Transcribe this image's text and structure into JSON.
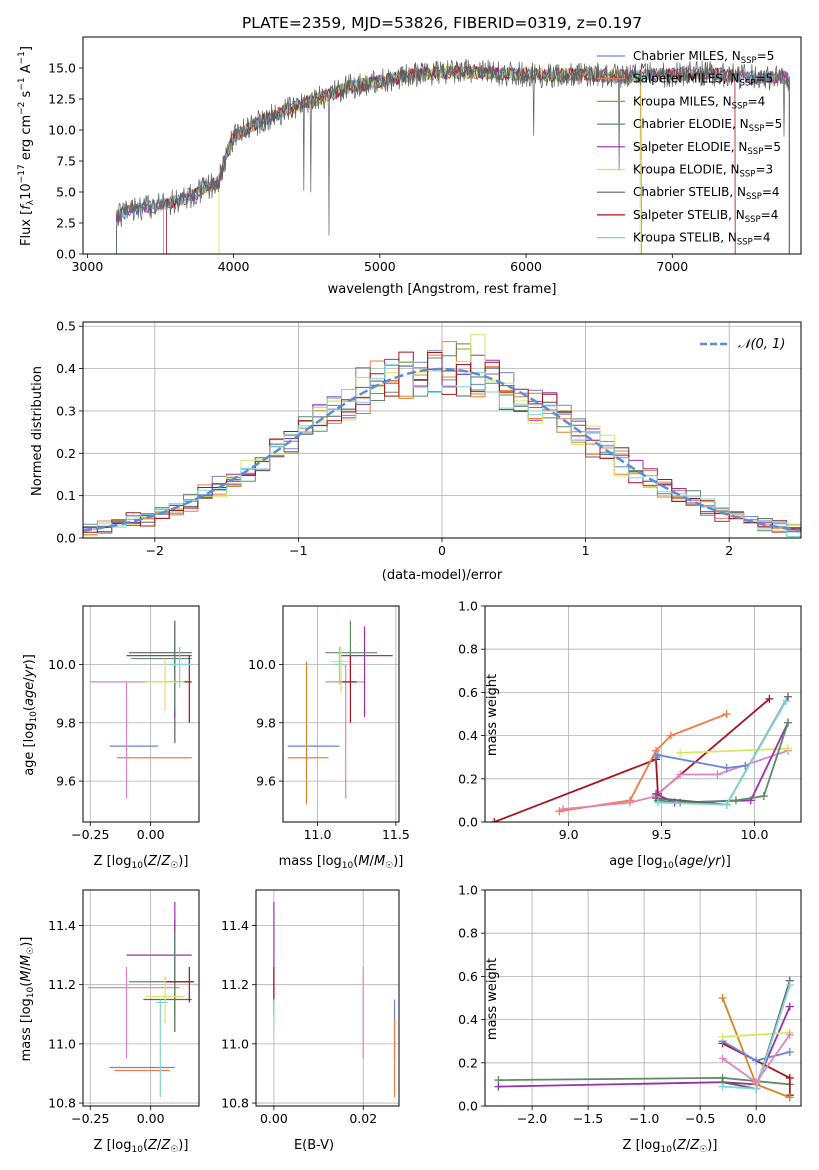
{
  "figure": {
    "title": "PLATE=2359, MJD=53826, FIBERID=0319, z=0.197"
  },
  "models": [
    {
      "name": "Chabrier MILES",
      "nssp": "5",
      "color": "#6a84d8"
    },
    {
      "name": "Salpeter MILES",
      "nssp": "5",
      "color": "#ef7b45"
    },
    {
      "name": "Kroupa MILES",
      "nssp": "4",
      "color": "#d4852a"
    },
    {
      "name": "Chabrier ELODIE",
      "nssp": "5",
      "color": "#5c8b64"
    },
    {
      "name": "Salpeter ELODIE",
      "nssp": "5",
      "color": "#9b2fb0"
    },
    {
      "name": "Kroupa ELODIE",
      "nssp": "3",
      "color": "#d8e660"
    },
    {
      "name": "Chabrier STELIB",
      "nssp": "4",
      "color": "#606060"
    },
    {
      "name": "Salpeter STELIB",
      "nssp": "4",
      "color": "#a8141e"
    },
    {
      "name": "Kroupa STELIB",
      "nssp": "4",
      "color": "#7fd6d6"
    }
  ],
  "extra_colors": {
    "pink": "#e084c0",
    "gaussian": "#5b8dd6"
  },
  "chart_data": [
    {
      "type": "line",
      "id": "spectrum",
      "xlabel": "wavelength [Angstrom, rest frame]",
      "ylabel": "Flux [fλ10⁻¹⁷ erg cm⁻² s⁻¹ Å⁻¹]",
      "xlim": [
        2970,
        7880
      ],
      "ylim": [
        0,
        17.5
      ],
      "xticks": [
        3000,
        4000,
        5000,
        6000,
        7000
      ],
      "yticks": [
        0.0,
        2.5,
        5.0,
        7.5,
        10.0,
        12.5,
        15.0
      ],
      "legend": "top-right",
      "continuum_x": [
        3200,
        3300,
        3500,
        3700,
        3900,
        3950,
        4000,
        4200,
        4400,
        4600,
        4800,
        5000,
        5200,
        5400,
        5600,
        5800,
        6000,
        6200,
        6400,
        6600,
        6800,
        7000,
        7200,
        7400,
        7500,
        7800
      ],
      "continuum_y": [
        3.0,
        3.6,
        3.9,
        4.6,
        5.8,
        8.0,
        9.5,
        10.8,
        11.8,
        12.6,
        13.5,
        13.9,
        14.4,
        14.6,
        14.7,
        14.6,
        14.5,
        14.4,
        14.5,
        14.3,
        14.4,
        14.5,
        14.6,
        14.4,
        14.3,
        14.2
      ]
    },
    {
      "type": "histogram",
      "id": "residuals",
      "xlabel": "(data-model)/error",
      "ylabel": "Normed distribution",
      "xlim": [
        -2.5,
        2.5
      ],
      "ylim": [
        0,
        0.51
      ],
      "xticks": [
        -2,
        -1,
        0,
        1,
        2
      ],
      "yticks": [
        0.0,
        0.1,
        0.2,
        0.3,
        0.4,
        0.5
      ],
      "grid": true,
      "legend": "top-right",
      "gaussian_label": "𝒩(0, 1)",
      "bin_width": 0.1
    },
    {
      "type": "scatter",
      "id": "age_vs_Z",
      "xlabel": "Z [log₁₀(Z/Z☉)]",
      "ylabel": "age  [log₁₀(age/yr)]",
      "xlim": [
        -0.28,
        0.2
      ],
      "ylim": [
        9.46,
        10.2
      ],
      "xticks": [
        -0.25,
        0.0
      ],
      "yticks": [
        9.6,
        9.8,
        10.0
      ],
      "grid": true
    },
    {
      "type": "scatter",
      "id": "age_vs_mass",
      "xlabel": "mass [log₁₀(M/M☉)]",
      "xlim": [
        10.78,
        11.52
      ],
      "ylim": [
        9.46,
        10.2
      ],
      "xticks": [
        11.0,
        11.5
      ],
      "yticks": [
        9.6,
        9.8,
        10.0
      ],
      "grid": true
    },
    {
      "type": "line",
      "id": "massweight_vs_age",
      "xlabel": "age  [log₁₀(age/yr)]",
      "ylabel": "mass weight",
      "xlim": [
        8.55,
        10.25
      ],
      "ylim": [
        0,
        1.0
      ],
      "xticks": [
        9.0,
        9.5,
        10.0
      ],
      "yticks": [
        0.0,
        0.2,
        0.4,
        0.6,
        0.8,
        1.0
      ],
      "grid": true
    },
    {
      "type": "scatter",
      "id": "mass_vs_Z",
      "xlabel": "Z [log₁₀(Z/Z☉)]",
      "ylabel": "mass [log₁₀(M/M☉)]",
      "xlim": [
        -0.28,
        0.2
      ],
      "ylim": [
        10.79,
        11.52
      ],
      "xticks": [
        -0.25,
        0.0
      ],
      "yticks": [
        10.8,
        11.0,
        11.2,
        11.4
      ],
      "grid": true
    },
    {
      "type": "scatter",
      "id": "mass_vs_ebv",
      "xlabel": "E(B-V)",
      "xlim": [
        -0.004,
        0.028
      ],
      "ylim": [
        10.79,
        11.52
      ],
      "xticks": [
        0.0,
        0.02
      ],
      "yticks": [
        10.8,
        11.0,
        11.2,
        11.4
      ],
      "grid": true
    },
    {
      "type": "line",
      "id": "massweight_vs_Z",
      "xlabel": "Z [log₁₀(Z/Z☉)]",
      "ylabel": "mass weight",
      "xlim": [
        -2.42,
        0.4
      ],
      "ylim": [
        0,
        1.0
      ],
      "xticks": [
        -2.0,
        -1.5,
        -1.0,
        -0.5,
        0.0
      ],
      "yticks": [
        0.0,
        0.2,
        0.4,
        0.6,
        0.8,
        1.0
      ],
      "grid": true
    }
  ],
  "points": {
    "age_Z": [
      {
        "c": "#6a84d8",
        "x": -0.1,
        "y": 9.72,
        "xe": [
          -0.17,
          0.03
        ],
        "ye": [
          9.72,
          9.72
        ]
      },
      {
        "c": "#ef7b45",
        "x": -0.1,
        "y": 9.68,
        "xe": [
          -0.14,
          0.17
        ],
        "ye": [
          9.68,
          9.68
        ]
      },
      {
        "c": "#e084c0",
        "x": -0.1,
        "y": 9.94,
        "xe": [
          -0.25,
          0.15
        ],
        "ye": [
          9.54,
          9.94
        ]
      },
      {
        "c": "#606060",
        "x": 0.1,
        "y": 10.04,
        "xe": [
          -0.09,
          0.17
        ],
        "ye": [
          9.73,
          10.15
        ]
      },
      {
        "c": "#9b2fb0",
        "x": 0.1,
        "y": 10.03,
        "xe": [
          -0.1,
          0.17
        ],
        "ye": [
          9.82,
          10.13
        ]
      },
      {
        "c": "#5c8b64",
        "x": 0.1,
        "y": 10.02,
        "xe": [
          -0.08,
          0.17
        ],
        "ye": [
          9.84,
          10.13
        ]
      },
      {
        "c": "#a8141e",
        "x": 0.16,
        "y": 9.94,
        "xe": [
          0.07,
          0.17
        ],
        "ye": [
          9.8,
          10.03
        ]
      },
      {
        "c": "#d8e660",
        "x": 0.06,
        "y": 9.94,
        "xe": [
          -0.02,
          0.14
        ],
        "ye": [
          9.84,
          10.02
        ]
      },
      {
        "c": "#7fd6d6",
        "x": 0.12,
        "y": 10.0,
        "xe": [
          0.07,
          0.17
        ],
        "ye": [
          9.92,
          10.06
        ]
      }
    ],
    "age_mass": [
      {
        "c": "#6a84d8",
        "x": 10.88,
        "y": 9.72,
        "xe": [
          10.81,
          11.14
        ],
        "ye": [
          9.72,
          9.72
        ]
      },
      {
        "c": "#ef7b45",
        "x": 10.88,
        "y": 9.68,
        "xe": [
          10.81,
          11.07
        ],
        "ye": [
          9.68,
          9.68
        ]
      },
      {
        "c": "#e084c0",
        "x": 11.18,
        "y": 9.94,
        "xe": [
          11.05,
          11.3
        ],
        "ye": [
          9.54,
          10.0
        ]
      },
      {
        "c": "#d4852a",
        "x": 10.93,
        "y": 9.76,
        "xe": [
          10.93,
          10.93
        ],
        "ye": [
          9.52,
          10.01
        ]
      },
      {
        "c": "#9b2fb0",
        "x": 11.3,
        "y": 10.03,
        "xe": [
          11.15,
          11.48
        ],
        "ye": [
          9.82,
          10.13
        ]
      },
      {
        "c": "#5c8b64",
        "x": 11.21,
        "y": 10.04,
        "xe": [
          11.05,
          11.38
        ],
        "ye": [
          9.92,
          10.15
        ]
      },
      {
        "c": "#a8141e",
        "x": 11.21,
        "y": 9.94,
        "xe": [
          11.14,
          11.25
        ],
        "ye": [
          9.8,
          10.03
        ]
      },
      {
        "c": "#d8e660",
        "x": 11.15,
        "y": 10.01,
        "xe": [
          11.08,
          11.2
        ],
        "ye": [
          9.9,
          10.06
        ]
      },
      {
        "c": "#7fd6d6",
        "x": 11.14,
        "y": 10.0,
        "xe": [
          11.1,
          11.18
        ],
        "ye": [
          9.93,
          10.06
        ]
      }
    ],
    "mass_Z": [
      {
        "c": "#6a84d8",
        "x": -0.05,
        "y": 10.92,
        "xe": [
          -0.17,
          0.1
        ],
        "ye": [
          10.92,
          10.92
        ]
      },
      {
        "c": "#ef7b45",
        "x": -0.05,
        "y": 10.91,
        "xe": [
          -0.15,
          0.08
        ],
        "ye": [
          10.91,
          10.91
        ]
      },
      {
        "c": "#e084c0",
        "x": -0.1,
        "y": 11.19,
        "xe": [
          -0.26,
          0.12
        ],
        "ye": [
          10.95,
          11.26
        ]
      },
      {
        "c": "#606060",
        "x": 0.1,
        "y": 11.15,
        "xe": [
          -0.03,
          0.17
        ],
        "ye": [
          11.04,
          11.42
        ]
      },
      {
        "c": "#9b2fb0",
        "x": 0.1,
        "y": 11.3,
        "xe": [
          -0.1,
          0.17
        ],
        "ye": [
          11.1,
          11.48
        ]
      },
      {
        "c": "#5c8b64",
        "x": 0.1,
        "y": 11.21,
        "xe": [
          -0.09,
          0.17
        ],
        "ye": [
          11.04,
          11.38
        ]
      },
      {
        "c": "#a8141e",
        "x": 0.16,
        "y": 11.21,
        "xe": [
          0.06,
          0.18
        ],
        "ye": [
          11.14,
          11.26
        ]
      },
      {
        "c": "#d8e660",
        "x": 0.06,
        "y": 11.16,
        "xe": [
          -0.02,
          0.14
        ],
        "ye": [
          11.07,
          11.23
        ]
      },
      {
        "c": "#7fd6d6",
        "x": 0.04,
        "y": 11.14,
        "xe": [
          0.02,
          0.07
        ],
        "ye": [
          10.82,
          11.15
        ]
      }
    ],
    "mass_ebv": [
      {
        "c": "#9b2fb0",
        "x": 0.0,
        "y": 11.3,
        "xe": [
          0,
          0
        ],
        "ye": [
          11.1,
          11.48
        ]
      },
      {
        "c": "#a8141e",
        "x": 0.0,
        "y": 11.2,
        "xe": [
          0,
          0
        ],
        "ye": [
          11.14,
          11.26
        ]
      },
      {
        "c": "#7fd6d6",
        "x": 0.0,
        "y": 11.1,
        "xe": [
          0,
          0
        ],
        "ye": [
          11.04,
          11.15
        ]
      },
      {
        "c": "#e084c0",
        "x": 0.02,
        "y": 11.19,
        "xe": [
          0.02,
          0.02
        ],
        "ye": [
          10.95,
          11.26
        ]
      },
      {
        "c": "#6a84d8",
        "x": 0.027,
        "y": 11.05,
        "xe": [
          0.027,
          0.027
        ],
        "ye": [
          10.95,
          11.15
        ]
      },
      {
        "c": "#ef7b45",
        "x": 0.027,
        "y": 10.91,
        "xe": [
          0.027,
          0.027
        ],
        "ye": [
          10.82,
          11.08
        ]
      }
    ],
    "mw_age": [
      {
        "c": "#a8141e",
        "x": [
          8.6,
          9.47,
          9.48,
          10.08
        ],
        "y": [
          0.0,
          0.29,
          0.13,
          0.57
        ]
      },
      {
        "c": "#ef7b45",
        "x": [
          8.95,
          9.33,
          9.47,
          9.55,
          9.85
        ],
        "y": [
          0.05,
          0.1,
          0.33,
          0.4,
          0.5
        ]
      },
      {
        "c": "#e084c0",
        "x": [
          8.97,
          9.33,
          9.47,
          9.6,
          9.8,
          10.18
        ],
        "y": [
          0.06,
          0.09,
          0.12,
          0.22,
          0.22,
          0.33
        ]
      },
      {
        "c": "#6a84d8",
        "x": [
          9.47,
          9.48,
          9.85,
          9.95
        ],
        "y": [
          0.3,
          0.31,
          0.25,
          0.26
        ]
      },
      {
        "c": "#d8e660",
        "x": [
          9.6,
          10.18
        ],
        "y": [
          0.32,
          0.34
        ]
      },
      {
        "c": "#9b2fb0",
        "x": [
          9.47,
          9.57,
          9.98,
          10.18
        ],
        "y": [
          0.13,
          0.09,
          0.1,
          0.46
        ]
      },
      {
        "c": "#5c8b64",
        "x": [
          9.48,
          9.6,
          9.9,
          10.05,
          10.18
        ],
        "y": [
          0.1,
          0.09,
          0.1,
          0.12,
          0.46
        ]
      },
      {
        "c": "#606060",
        "x": [
          9.47,
          9.85,
          10.18
        ],
        "y": [
          0.11,
          0.08,
          0.58
        ]
      },
      {
        "c": "#7fd6d6",
        "x": [
          9.48,
          9.85,
          10.17
        ],
        "y": [
          0.09,
          0.08,
          0.56
        ]
      }
    ],
    "mw_Z": [
      {
        "c": "#5c8b64",
        "x": [
          -2.3,
          -0.3,
          0.3
        ],
        "y": [
          0.12,
          0.13,
          0.1
        ]
      },
      {
        "c": "#9b2fb0",
        "x": [
          -2.3,
          -0.3,
          0.0,
          0.3
        ],
        "y": [
          0.09,
          0.11,
          0.1,
          0.46
        ]
      },
      {
        "c": "#a8141e",
        "x": [
          -0.3,
          0.3,
          0.3
        ],
        "y": [
          0.29,
          0.13,
          0.05
        ]
      },
      {
        "c": "#d4852a",
        "x": [
          -0.3,
          0.0,
          0.3
        ],
        "y": [
          0.5,
          0.1,
          0.04
        ]
      },
      {
        "c": "#6a84d8",
        "x": [
          -0.3,
          0.0,
          0.3
        ],
        "y": [
          0.3,
          0.21,
          0.25
        ]
      },
      {
        "c": "#d8e660",
        "x": [
          -0.3,
          0.3
        ],
        "y": [
          0.32,
          0.34
        ]
      },
      {
        "c": "#606060",
        "x": [
          -0.3,
          0.0,
          0.3
        ],
        "y": [
          0.11,
          0.08,
          0.58
        ]
      },
      {
        "c": "#7fd6d6",
        "x": [
          -0.3,
          0.0,
          0.3
        ],
        "y": [
          0.09,
          0.08,
          0.56
        ]
      },
      {
        "c": "#e084c0",
        "x": [
          -0.3,
          0.0,
          0.3
        ],
        "y": [
          0.22,
          0.11,
          0.33
        ]
      }
    ]
  }
}
